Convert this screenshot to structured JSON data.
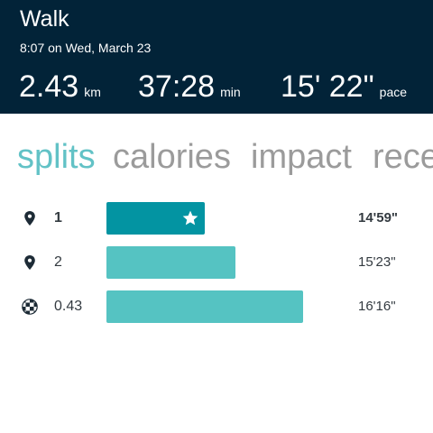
{
  "header": {
    "title": "Walk",
    "datetime": "8:07 on Wed, March 23",
    "distance": {
      "value": "2.43",
      "unit": "km"
    },
    "duration": {
      "value": "37:28",
      "unit": "min"
    },
    "pace": {
      "value": "15' 22\"",
      "unit": "pace"
    }
  },
  "tabs": [
    {
      "label": "splits",
      "active": true
    },
    {
      "label": "calories",
      "active": false
    },
    {
      "label": "impact",
      "active": false
    },
    {
      "label": "rece",
      "active": false
    }
  ],
  "splits": [
    {
      "label": "1",
      "pace": "14'59\"",
      "best": true,
      "icon": "location-pin-icon",
      "bar_fraction": 0.42
    },
    {
      "label": "2",
      "pace": "15'23\"",
      "best": false,
      "icon": "location-pin-icon",
      "bar_fraction": 0.55
    },
    {
      "label": "0.43",
      "pace": "16'16\"",
      "best": false,
      "icon": "checkered-flag-icon",
      "bar_fraction": 0.84
    }
  ],
  "colors": {
    "header_bg": "#022338",
    "accent": "#62c2c6",
    "best_bar": "#0394a2",
    "bar": "#55c3c2",
    "inactive_tab": "#9b9b9b"
  }
}
